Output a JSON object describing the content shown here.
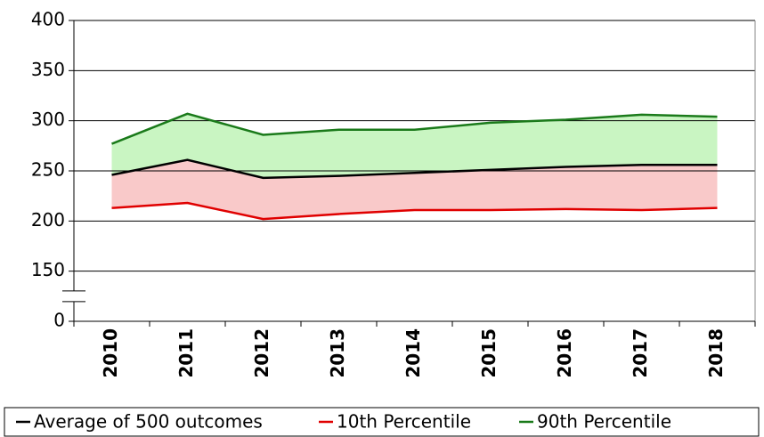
{
  "chart_data": {
    "type": "area_band",
    "categories": [
      "2010",
      "2011",
      "2012",
      "2013",
      "2014",
      "2015",
      "2016",
      "2017",
      "2018"
    ],
    "series": [
      {
        "name": "Average of 500 outcomes",
        "color": "#000000",
        "values": [
          246,
          261,
          243,
          245,
          248,
          251,
          254,
          256,
          256
        ]
      },
      {
        "name": "10th Percentile",
        "color": "#e00000",
        "values": [
          213,
          218,
          202,
          207,
          211,
          211,
          212,
          211,
          213
        ]
      },
      {
        "name": "90th Percentile",
        "color": "#1a7a1a",
        "values": [
          277,
          307,
          286,
          291,
          291,
          298,
          301,
          306,
          304
        ]
      }
    ],
    "band_colors": [
      "#f9c9c9",
      "#c9f5c2"
    ],
    "ylim": [
      0,
      400
    ],
    "yticks": [
      0,
      150,
      200,
      250,
      300,
      350,
      400
    ],
    "axis_break": [
      0,
      150
    ],
    "grid": true,
    "legend": "bottom"
  }
}
